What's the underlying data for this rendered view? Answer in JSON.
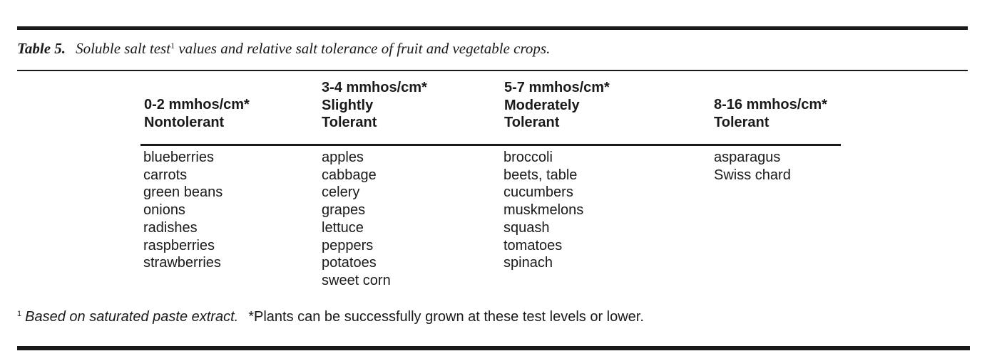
{
  "caption": {
    "label": "Table 5.",
    "text": "Soluble salt test",
    "sup": "1",
    "text_after": " values and relative salt tolerance of fruit and vegetable crops."
  },
  "columns": [
    {
      "header": [
        "0-2 mmhos/cm*",
        "Nontolerant"
      ],
      "items": [
        "blueberries",
        "carrots",
        "green beans",
        "onions",
        "radishes",
        "raspberries",
        "strawberries"
      ]
    },
    {
      "header": [
        "3-4 mmhos/cm*",
        "Slightly",
        "Tolerant"
      ],
      "items": [
        "apples",
        "cabbage",
        "celery",
        "grapes",
        "lettuce",
        "peppers",
        "potatoes",
        "sweet corn"
      ]
    },
    {
      "header": [
        "5-7 mmhos/cm*",
        "Moderately",
        "Tolerant"
      ],
      "items": [
        "broccoli",
        "beets, table",
        "cucumbers",
        "muskmelons",
        "squash",
        "tomatoes",
        "spinach"
      ]
    },
    {
      "header": [
        "8-16 mmhos/cm*",
        "Tolerant"
      ],
      "items": [
        "asparagus",
        "Swiss chard"
      ]
    }
  ],
  "footnote": {
    "sup": "1",
    "note1": "Based on saturated paste extract.",
    "note2": "*Plants can be successfully grown at these test levels or lower."
  }
}
